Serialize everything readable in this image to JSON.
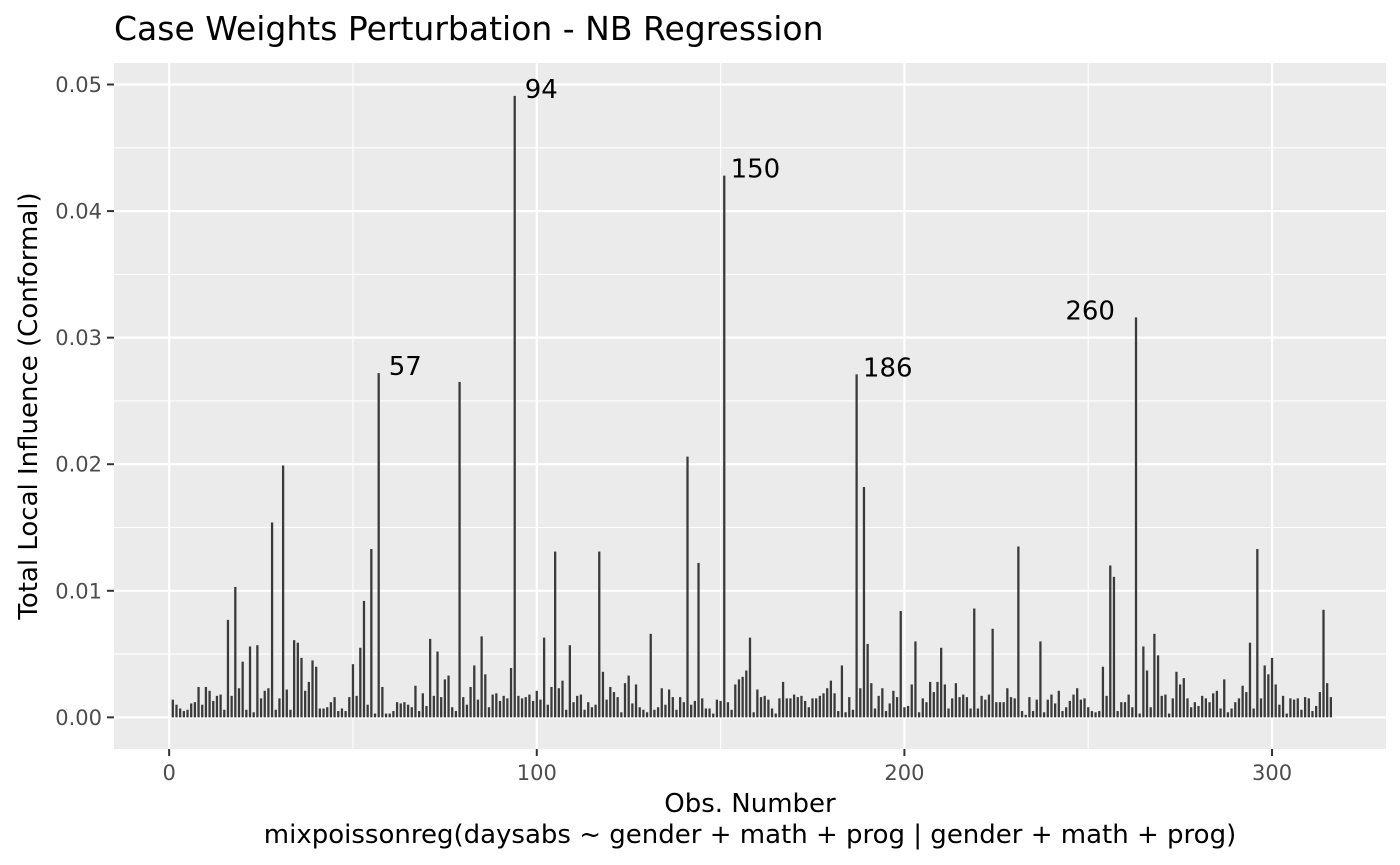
{
  "chart_data": {
    "type": "bar",
    "title": "Case Weights Perturbation - NB Regression",
    "xlabel": "Obs. Number",
    "xlabel2": "mixpoissonreg(daysabs ~ gender + math + prog | gender + math + prog)",
    "ylabel": "Total Local Influence (Conformal)",
    "xlim": [
      -15,
      331
    ],
    "ylim": [
      -0.0025,
      0.0517
    ],
    "x_ticks": [
      0,
      100,
      200,
      300
    ],
    "x_tick_labels": [
      "0",
      "100",
      "200",
      "300"
    ],
    "y_ticks": [
      0,
      0.01,
      0.02,
      0.03,
      0.04,
      0.05
    ],
    "y_tick_labels": [
      "0.00",
      "0.01",
      "0.02",
      "0.03",
      "0.04",
      "0.05"
    ],
    "grid": true,
    "colors": {
      "panel": "#ebebeb",
      "grid": "#ffffff",
      "bar": "#3a3a3a"
    },
    "annotations": [
      {
        "label": "57",
        "x": 57,
        "y": 0.0272
      },
      {
        "label": "94",
        "x": 94,
        "y": 0.0491
      },
      {
        "label": "150",
        "x": 150,
        "y": 0.0428
      },
      {
        "label": "186",
        "x": 186,
        "y": 0.0271
      },
      {
        "label": "260",
        "x": 260,
        "y": 0.0316
      }
    ],
    "values": [
      0.0014,
      0.001,
      0.0007,
      0.0005,
      0.0006,
      0.0011,
      0.0012,
      0.0024,
      0.001,
      0.0024,
      0.0021,
      0.0013,
      0.0017,
      0.0018,
      0.0006,
      0.0077,
      0.0017,
      0.0103,
      0.0023,
      0.0044,
      0.0006,
      0.0056,
      0.0004,
      0.0057,
      0.0015,
      0.0021,
      0.0023,
      0.0154,
      0.0006,
      0.0015,
      0.0199,
      0.0022,
      0.0006,
      0.0061,
      0.0059,
      0.0047,
      0.0021,
      0.0028,
      0.0045,
      0.004,
      0.0007,
      0.0007,
      0.0008,
      0.0012,
      0.0016,
      0.0005,
      0.0007,
      0.0005,
      0.0016,
      0.0042,
      0.0017,
      0.0055,
      0.0092,
      0.001,
      0.0133,
      0.0003,
      0.0272,
      0.0024,
      0.0003,
      0.0003,
      0.0005,
      0.0012,
      0.0011,
      0.0012,
      0.001,
      0.0008,
      0.0025,
      0.0005,
      0.0019,
      0.0009,
      0.0062,
      0.0017,
      0.0052,
      0.0016,
      0.003,
      0.0033,
      0.0008,
      0.0005,
      0.0265,
      0.0016,
      0.001,
      0.0024,
      0.0041,
      0.0014,
      0.0064,
      0.0034,
      0.0008,
      0.0018,
      0.0019,
      0.0013,
      0.0017,
      0.0015,
      0.0039,
      0.0491,
      0.0017,
      0.0015,
      0.0016,
      0.0018,
      0.0013,
      0.0021,
      0.0014,
      0.0063,
      0.001,
      0.0024,
      0.0131,
      0.0023,
      0.0029,
      0.0006,
      0.0057,
      0.0012,
      0.0017,
      0.0018,
      0.0006,
      0.0012,
      0.0008,
      0.001,
      0.0131,
      0.0036,
      0.0014,
      0.0024,
      0.002,
      0.0016,
      0.0004,
      0.0027,
      0.0033,
      0.0011,
      0.0026,
      0.0008,
      0.0006,
      0.0004,
      0.0066,
      0.0006,
      0.0008,
      0.0023,
      0.001,
      0.0022,
      0.0016,
      0.0006,
      0.0016,
      0.0012,
      0.0206,
      0.001,
      0.0013,
      0.0122,
      0.0015,
      0.0007,
      0.0007,
      0.0003,
      0.0014,
      0.0013,
      0.0428,
      0.0012,
      0.0006,
      0.0026,
      0.003,
      0.0032,
      0.0037,
      0.0063,
      0.0004,
      0.0022,
      0.0016,
      0.0017,
      0.0014,
      0.0007,
      0.0003,
      0.0015,
      0.0028,
      0.0015,
      0.0015,
      0.0018,
      0.0016,
      0.0017,
      0.0013,
      0.0008,
      0.0015,
      0.0015,
      0.0017,
      0.0019,
      0.0023,
      0.0029,
      0.0019,
      0.0005,
      0.0041,
      0.0004,
      0.0016,
      0.0006,
      0.0271,
      0.0023,
      0.0182,
      0.0058,
      0.0027,
      0.0007,
      0.0017,
      0.0023,
      0.0005,
      0.0011,
      0.0021,
      0.0016,
      0.0084,
      0.0008,
      0.0009,
      0.0026,
      0.006,
      0.0004,
      0.0015,
      0.0012,
      0.0028,
      0.002,
      0.0028,
      0.0055,
      0.0026,
      0.0007,
      0.0015,
      0.0027,
      0.0016,
      0.0018,
      0.0016,
      0.0007,
      0.0086,
      0.0007,
      0.0017,
      0.0014,
      0.0018,
      0.007,
      0.0012,
      0.0012,
      0.0012,
      0.0023,
      0.0016,
      0.0015,
      0.0135,
      0.0005,
      0.0002,
      0.0016,
      0.0005,
      0.0014,
      0.006,
      0.0004,
      0.0014,
      0.0018,
      0.0011,
      0.0021,
      0.0005,
      0.0008,
      0.0013,
      0.0018,
      0.0023,
      0.0014,
      0.0015,
      0.0008,
      0.0005,
      0.0004,
      0.0005,
      0.004,
      0.0017,
      0.012,
      0.0111,
      0.0005,
      0.0012,
      0.0012,
      0.0018,
      0.0008,
      0.0316,
      0.0003,
      0.0056,
      0.0037,
      0.0008,
      0.0066,
      0.0049,
      0.0017,
      0.0018,
      0.0003,
      0.0015,
      0.0036,
      0.0026,
      0.0031,
      0.0015,
      0.0008,
      0.0012,
      0.0009,
      0.0017,
      0.0015,
      0.0012,
      0.0019,
      0.0021,
      0.0007,
      0.003,
      0.0004,
      0.0007,
      0.0012,
      0.0015,
      0.0025,
      0.002,
      0.0059,
      0.0007,
      0.0133,
      0.0015,
      0.0041,
      0.0034,
      0.0047,
      0.0026,
      0.001,
      0.0017,
      0.0003,
      0.0015,
      0.0014,
      0.0015,
      0.0006,
      0.0016,
      0.0015,
      0.0005,
      0.0009,
      0.002,
      0.0085,
      0.0027,
      0.0016
    ]
  }
}
